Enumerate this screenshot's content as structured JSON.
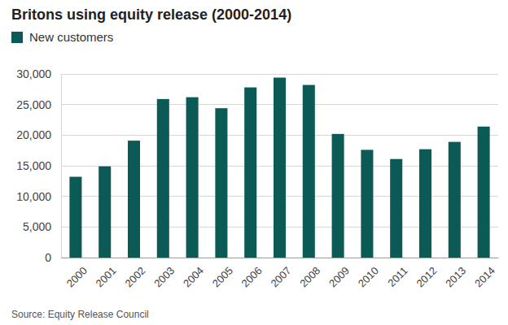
{
  "chart_data": {
    "type": "bar",
    "title": "Britons using equity release (2000-2014)",
    "source": "Source: Equity Release Council",
    "categories": [
      "2000",
      "2001",
      "2002",
      "2003",
      "2004",
      "2005",
      "2006",
      "2007",
      "2008",
      "2009",
      "2010",
      "2011",
      "2012",
      "2013",
      "2014"
    ],
    "series": [
      {
        "name": "New customers",
        "color": "#0b5a55",
        "values": [
          13200,
          14900,
          19100,
          25900,
          26200,
          24400,
          27800,
          29400,
          28200,
          20200,
          17600,
          16100,
          17700,
          18900,
          21400
        ]
      }
    ],
    "ylim": [
      0,
      30000
    ],
    "yticks": [
      0,
      {
        "value": 5000,
        "label": "5,000"
      },
      {
        "value": 10000,
        "label": "10,000"
      },
      {
        "value": 15000,
        "label": "15,000"
      },
      {
        "value": 20000,
        "label": "20,000"
      },
      {
        "value": 25000,
        "label": "25,000"
      },
      {
        "value": 30000,
        "label": "30,000"
      }
    ],
    "grid": true,
    "legend": "top-left"
  }
}
